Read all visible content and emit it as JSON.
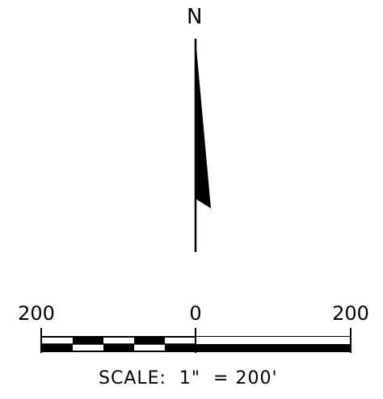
{
  "north_arrow": {
    "letter": "N"
  },
  "scale_bar": {
    "tick_labels": {
      "left": "200",
      "center": "0",
      "right": "200"
    },
    "scale_text": "SCALE:  1\"  = 200'"
  },
  "colors": {
    "ink": "#000000",
    "paper": "#ffffff"
  }
}
